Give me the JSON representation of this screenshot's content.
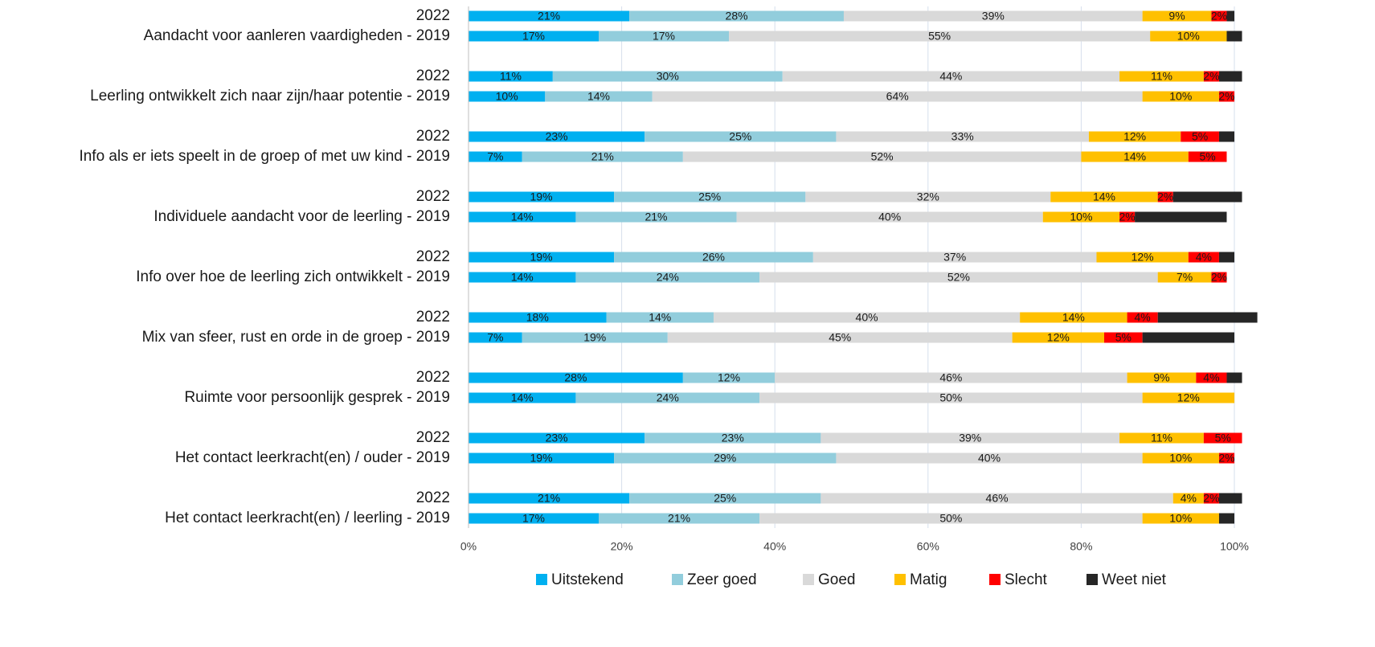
{
  "chart_data": {
    "type": "stacked_barh",
    "categories": [
      "2022",
      "Aandacht voor aanleren vaardigheden - 2019",
      "2022",
      "Leerling ontwikkelt zich naar zijn/haar potentie - 2019",
      "2022",
      "Info als er iets speelt in de groep of met uw kind - 2019",
      "2022",
      "Individuele aandacht voor de leerling - 2019",
      "2022",
      "Info over hoe de leerling zich ontwikkelt - 2019",
      "2022",
      "Mix van sfeer, rust en orde in de groep - 2019",
      "2022",
      "Ruimte voor persoonlijk gesprek - 2019",
      "2022",
      "Het contact leerkracht(en) / ouder - 2019",
      "2022",
      "Het contact leerkracht(en) / leerling - 2019"
    ],
    "series": [
      {
        "name": "Uitstekend",
        "color": "#00b0f0",
        "values": [
          21,
          17,
          11,
          10,
          23,
          7,
          19,
          14,
          19,
          14,
          18,
          7,
          28,
          14,
          23,
          19,
          21,
          17
        ],
        "value_labels": [
          "21%",
          "17%",
          "11%",
          "10%",
          "23%",
          "7%",
          "19%",
          "14%",
          "19%",
          "14%",
          "18%",
          "7%",
          "28%",
          "14%",
          "23%",
          "19%",
          "21%",
          "17%"
        ]
      },
      {
        "name": "Zeer goed",
        "color": "#92cddc",
        "values": [
          28,
          17,
          30,
          14,
          25,
          21,
          25,
          21,
          26,
          24,
          14,
          19,
          12,
          24,
          23,
          29,
          25,
          21
        ],
        "value_labels": [
          "28%",
          "17%",
          "30%",
          "14%",
          "25%",
          "21%",
          "25%",
          "21%",
          "26%",
          "24%",
          "14%",
          "19%",
          "12%",
          "24%",
          "23%",
          "29%",
          "25%",
          "21%"
        ]
      },
      {
        "name": "Goed",
        "color": "#d9d9d9",
        "values": [
          39,
          55,
          44,
          64,
          33,
          52,
          32,
          40,
          37,
          52,
          40,
          45,
          46,
          50,
          39,
          40,
          46,
          50
        ],
        "value_labels": [
          "39%",
          "55%",
          "44%",
          "64%",
          "33%",
          "52%",
          "32%",
          "40%",
          "37%",
          "52%",
          "40%",
          "45%",
          "46%",
          "50%",
          "39%",
          "40%",
          "46%",
          "50%"
        ]
      },
      {
        "name": "Matig",
        "color": "#ffc000",
        "values": [
          9,
          10,
          11,
          10,
          12,
          14,
          14,
          10,
          12,
          7,
          14,
          12,
          9,
          12,
          11,
          10,
          4,
          10
        ],
        "value_labels": [
          "9%",
          "10%",
          "11%",
          "10%",
          "12%",
          "14%",
          "14%",
          "10%",
          "12%",
          "7%",
          "14%",
          "12%",
          "9%",
          "12%",
          "11%",
          "10%",
          "4%",
          "10%"
        ]
      },
      {
        "name": "Slecht",
        "color": "#ff0000",
        "values": [
          2,
          0,
          2,
          2,
          5,
          5,
          2,
          2,
          4,
          2,
          4,
          5,
          4,
          0,
          5,
          2,
          2,
          0
        ],
        "value_labels": [
          "2%",
          null,
          "2%",
          "2%",
          "5%",
          "5%",
          "2%",
          "2%",
          "4%",
          "2%",
          "4%",
          "5%",
          "4%",
          null,
          "5%",
          "2%",
          "2%",
          null
        ]
      },
      {
        "name": "Weet niet",
        "color": "#262626",
        "values": [
          1,
          2,
          3,
          0,
          2,
          0,
          9,
          12,
          2,
          0,
          13,
          12,
          2,
          0,
          0,
          0,
          3,
          2
        ]
      }
    ],
    "xlim": [
      0,
      100
    ],
    "xticks": [
      {
        "value": 0,
        "label": "0%"
      },
      {
        "value": 20,
        "label": "20%"
      },
      {
        "value": 40,
        "label": "40%"
      },
      {
        "value": 60,
        "label": "60%"
      },
      {
        "value": 80,
        "label": "80%"
      },
      {
        "value": 100,
        "label": "100%"
      }
    ],
    "grid": true,
    "legend": "bottom"
  }
}
